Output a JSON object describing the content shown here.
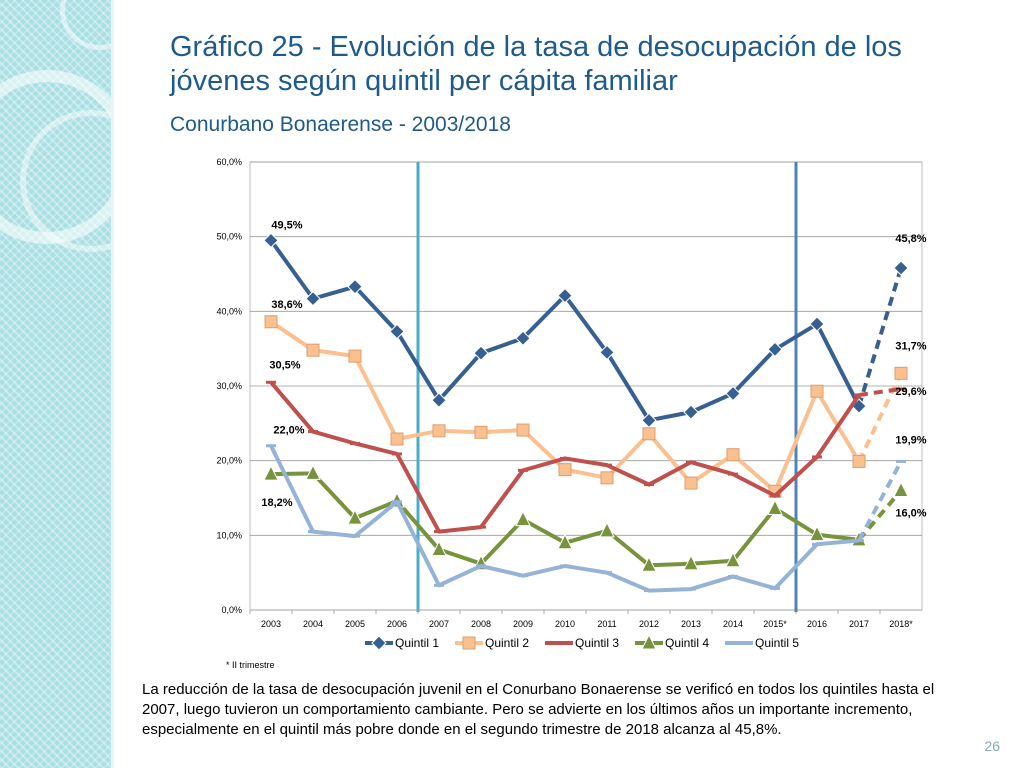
{
  "slide": {
    "title": "Gráfico 25 - Evolución de la tasa de desocupación de los jóvenes según quintil per cápita familiar",
    "subtitle": "Conurbano Bonaerense - 2003/2018",
    "footnote": "* II trimestre",
    "body": "La reducción de la tasa de desocupación juvenil en el Conurbano Bonaerense se verificó en todos los quintiles hasta el 2007, luego tuvieron un comportamiento cambiante. Pero se advierte en los últimos años un importante incremento, especialmente en el quintil más pobre donde en el segundo trimestre de 2018 alcanza al 45,8%.",
    "page_number": "26"
  },
  "chart_data": {
    "type": "line",
    "categories": [
      "2003",
      "2004",
      "2005",
      "2006",
      "2007",
      "2008",
      "2009",
      "2010",
      "2011",
      "2012",
      "2013",
      "2014",
      "2015*",
      "2016",
      "2017",
      "2018*"
    ],
    "ylim": [
      0,
      60
    ],
    "yticks": [
      "0,0%",
      "10,0%",
      "20,0%",
      "30,0%",
      "40,0%",
      "50,0%",
      "60,0%"
    ],
    "grid": true,
    "legend_position": "bottom",
    "vertical_markers": [
      {
        "after_category": "2006",
        "color": "#4bacc6"
      },
      {
        "after_category": "2015*",
        "color": "#4f81bd"
      }
    ],
    "series": [
      {
        "name": "Quintil 1",
        "color": "#376092",
        "marker": "diamond",
        "values": [
          49.5,
          41.7,
          43.3,
          37.3,
          28.1,
          34.4,
          36.4,
          42.1,
          34.5,
          25.4,
          26.5,
          29.0,
          34.9,
          38.3,
          27.3,
          45.8
        ]
      },
      {
        "name": "Quintil 2",
        "color": "#fac090",
        "marker": "square",
        "values": [
          38.6,
          34.8,
          34.0,
          22.9,
          24.0,
          23.8,
          24.1,
          18.8,
          17.7,
          23.6,
          17.0,
          20.8,
          15.9,
          29.3,
          19.9,
          31.7
        ]
      },
      {
        "name": "Quintil 3",
        "color": "#c0504d",
        "marker": "dash",
        "values": [
          30.5,
          23.9,
          22.3,
          20.9,
          10.5,
          11.1,
          18.7,
          20.3,
          19.4,
          16.8,
          19.8,
          18.2,
          15.3,
          20.5,
          28.8,
          29.6
        ]
      },
      {
        "name": "Quintil 4",
        "color": "#77933c",
        "marker": "triangle",
        "values": [
          18.2,
          18.3,
          12.3,
          14.6,
          8.1,
          6.2,
          12.1,
          9.0,
          10.6,
          6.0,
          6.2,
          6.6,
          13.6,
          10.1,
          9.4,
          16.0
        ]
      },
      {
        "name": "Quintil 5",
        "color": "#95b3d7",
        "marker": "dash",
        "values": [
          22.0,
          10.5,
          9.9,
          14.5,
          3.3,
          5.9,
          4.6,
          5.9,
          5.0,
          2.6,
          2.8,
          4.5,
          2.9,
          8.8,
          9.3,
          19.9
        ]
      }
    ],
    "data_labels": [
      {
        "series": 0,
        "index": 0,
        "text": "49,5%"
      },
      {
        "series": 0,
        "index": 15,
        "text": "45,8%"
      },
      {
        "series": 1,
        "index": 0,
        "text": "38,6%"
      },
      {
        "series": 1,
        "index": 15,
        "text": "31,7%"
      },
      {
        "series": 2,
        "index": 0,
        "text": "30,5%"
      },
      {
        "series": 2,
        "index": 15,
        "text": "29,6%"
      },
      {
        "series": 4,
        "index": 0,
        "text": "22,0%"
      },
      {
        "series": 4,
        "index": 15,
        "text": "19,9%"
      },
      {
        "series": 3,
        "index": 0,
        "text": "18,2%"
      },
      {
        "series": 3,
        "index": 15,
        "text": "16,0%"
      }
    ]
  }
}
